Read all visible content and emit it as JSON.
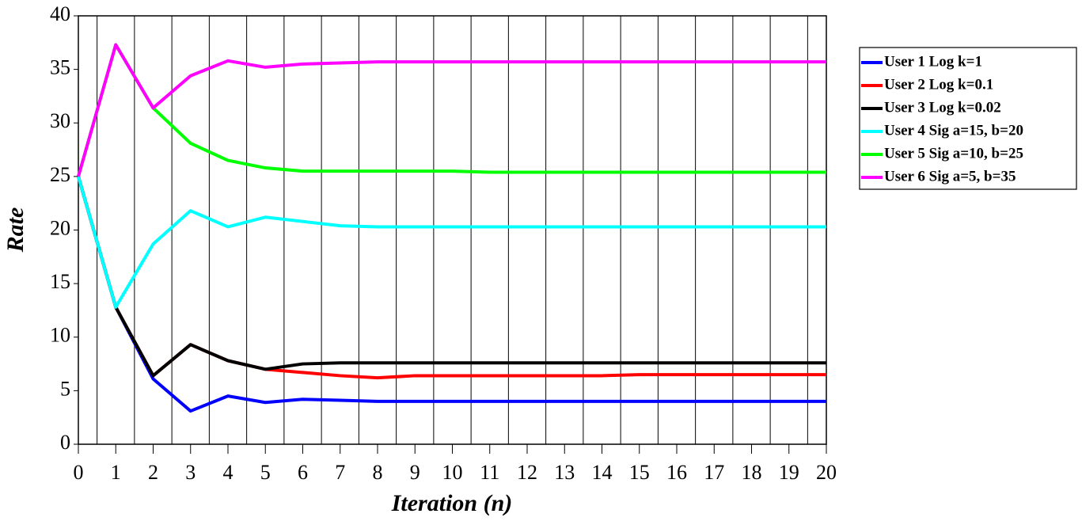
{
  "chart_data": {
    "type": "line",
    "x_label": "Iteration (n)",
    "y_label": "Rate",
    "x": [
      0,
      1,
      2,
      3,
      4,
      5,
      6,
      7,
      8,
      9,
      10,
      11,
      12,
      13,
      14,
      15,
      16,
      17,
      18,
      19,
      20
    ],
    "xlim": [
      0,
      20
    ],
    "xticks": [
      0,
      1,
      2,
      3,
      4,
      5,
      6,
      7,
      8,
      9,
      10,
      11,
      12,
      13,
      14,
      15,
      16,
      17,
      18,
      19,
      20
    ],
    "ylim": [
      0,
      40
    ],
    "yticks": [
      0,
      5,
      10,
      15,
      20,
      25,
      30,
      35,
      40
    ],
    "grid": true,
    "legend": "right",
    "series": [
      {
        "name": "User 1 Log k=1",
        "color": "#0000ff",
        "values": [
          25,
          12.8,
          6.1,
          3.1,
          4.5,
          3.9,
          4.2,
          4.1,
          4.0,
          4.0,
          4.0,
          4.0,
          4.0,
          4.0,
          4.0,
          4.0,
          4.0,
          4.0,
          4.0,
          4.0,
          4.0
        ]
      },
      {
        "name": "User 2 Log k=0.1",
        "color": "#ff0000",
        "values": [
          25,
          12.8,
          6.4,
          9.3,
          7.8,
          7.0,
          6.7,
          6.4,
          6.2,
          6.4,
          6.4,
          6.4,
          6.4,
          6.4,
          6.4,
          6.5,
          6.5,
          6.5,
          6.5,
          6.5,
          6.5
        ]
      },
      {
        "name": "User 3 Log k=0.02",
        "color": "#000000",
        "values": [
          25,
          12.8,
          6.4,
          9.3,
          7.8,
          7.0,
          7.5,
          7.6,
          7.6,
          7.6,
          7.6,
          7.6,
          7.6,
          7.6,
          7.6,
          7.6,
          7.6,
          7.6,
          7.6,
          7.6,
          7.6
        ]
      },
      {
        "name": "User 4 Sig a=15, b=20",
        "color": "#00ffff",
        "values": [
          25,
          12.8,
          18.7,
          21.8,
          20.3,
          21.2,
          20.8,
          20.4,
          20.3,
          20.3,
          20.3,
          20.3,
          20.3,
          20.3,
          20.3,
          20.3,
          20.3,
          20.3,
          20.3,
          20.3,
          20.3
        ]
      },
      {
        "name": "User 5 Sig a=10, b=25",
        "color": "#00ff00",
        "values": [
          25,
          37.3,
          31.4,
          28.1,
          26.5,
          25.8,
          25.5,
          25.5,
          25.5,
          25.5,
          25.5,
          25.4,
          25.4,
          25.4,
          25.4,
          25.4,
          25.4,
          25.4,
          25.4,
          25.4,
          25.4
        ]
      },
      {
        "name": "User 6 Sig a=5, b=35",
        "color": "#ff00ff",
        "values": [
          25,
          37.3,
          31.4,
          34.4,
          35.8,
          35.2,
          35.5,
          35.6,
          35.7,
          35.7,
          35.7,
          35.7,
          35.7,
          35.7,
          35.7,
          35.7,
          35.7,
          35.7,
          35.7,
          35.7,
          35.7
        ]
      }
    ]
  }
}
